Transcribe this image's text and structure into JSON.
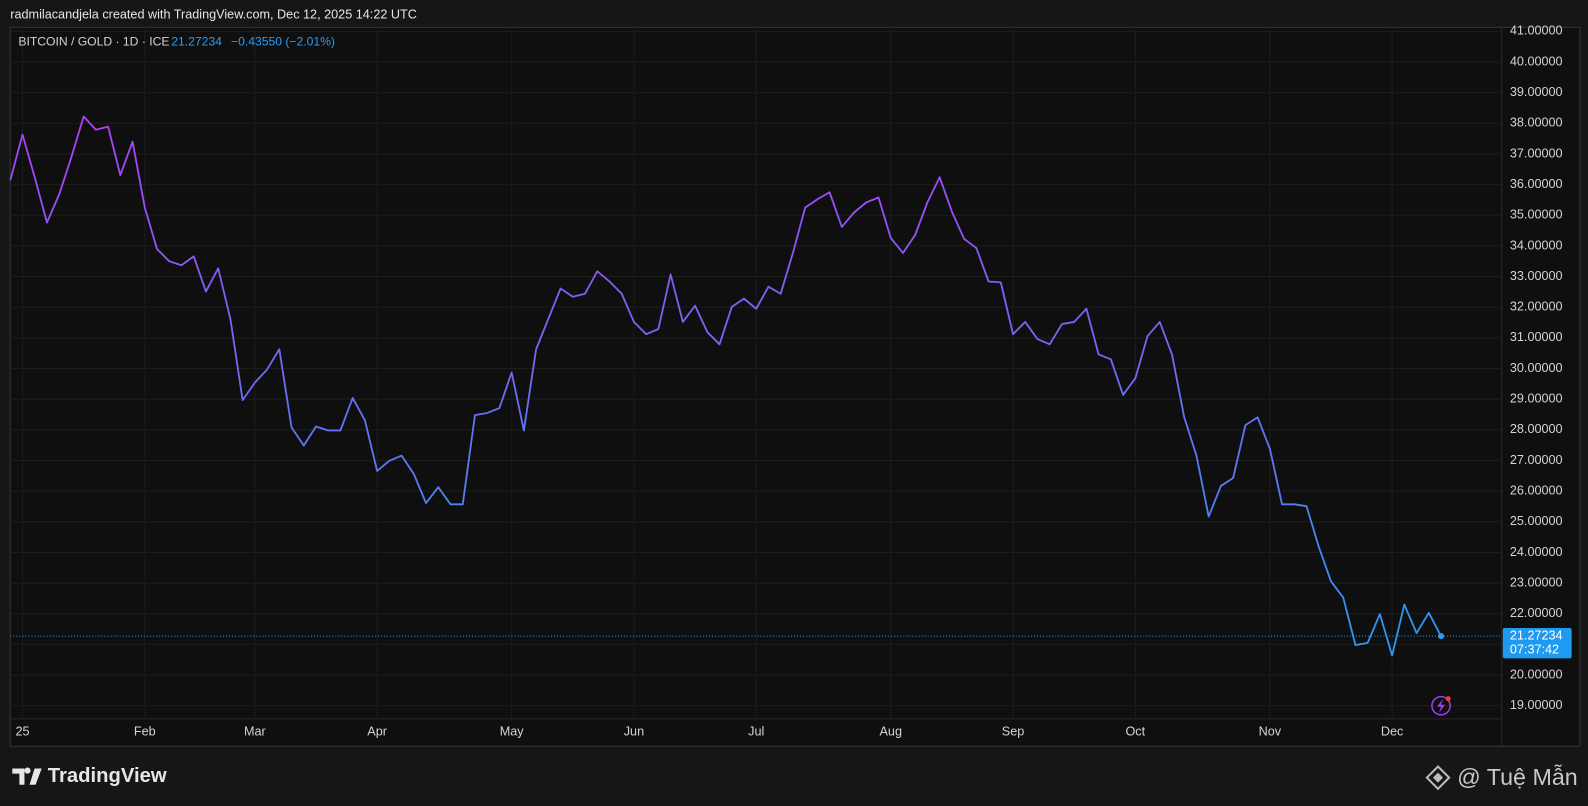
{
  "header": {
    "credit": "radmilacandjela created with TradingView.com, Dec 12, 2025 14:22 UTC"
  },
  "chart_data": {
    "type": "line",
    "title": "BITCOIN / GOLD · 1D · ICE",
    "change": "−0.43550 (−2.01%)",
    "countdown": "07:37:42",
    "colors": [
      "#b13ef4",
      "#2a98f3"
    ],
    "grid": true,
    "categories": [
      null,
      "25",
      null,
      null,
      null,
      null,
      null,
      null,
      null,
      null,
      null,
      "Feb",
      null,
      null,
      null,
      null,
      null,
      null,
      null,
      null,
      "Mar",
      null,
      null,
      null,
      null,
      null,
      null,
      null,
      null,
      null,
      "Apr",
      null,
      null,
      null,
      null,
      null,
      null,
      null,
      null,
      null,
      null,
      "May",
      null,
      null,
      null,
      null,
      null,
      null,
      null,
      null,
      null,
      "Jun",
      null,
      null,
      null,
      null,
      null,
      null,
      null,
      null,
      null,
      "Jul",
      null,
      null,
      null,
      null,
      null,
      null,
      null,
      null,
      null,
      null,
      "Aug",
      null,
      null,
      null,
      null,
      null,
      null,
      null,
      null,
      null,
      "Sep",
      null,
      null,
      null,
      null,
      null,
      null,
      null,
      null,
      null,
      "Oct",
      null,
      null,
      null,
      null,
      null,
      null,
      null,
      null,
      null,
      null,
      "Nov",
      null,
      null,
      null,
      null,
      null,
      null,
      null,
      null,
      null,
      "Dec",
      null,
      null,
      null,
      null
    ],
    "values": [
      36.14,
      37.63,
      36.24,
      34.76,
      35.68,
      36.9,
      38.22,
      37.79,
      37.89,
      36.31,
      37.4,
      35.25,
      33.9,
      33.5,
      33.37,
      33.66,
      32.51,
      33.27,
      31.62,
      28.97,
      29.54,
      29.97,
      30.63,
      28.08,
      27.49,
      28.11,
      27.98,
      27.98,
      29.04,
      28.31,
      26.66,
      26.99,
      27.16,
      26.56,
      25.61,
      26.13,
      25.57,
      25.57,
      28.48,
      28.55,
      28.71,
      29.87,
      27.98,
      30.63,
      31.62,
      32.61,
      32.34,
      32.44,
      33.17,
      32.84,
      32.44,
      31.52,
      31.12,
      31.29,
      33.07,
      31.52,
      32.05,
      31.19,
      30.79,
      32.01,
      32.28,
      31.95,
      32.67,
      32.44,
      33.77,
      35.25,
      35.52,
      35.75,
      34.62,
      35.09,
      35.42,
      35.58,
      34.26,
      33.77,
      34.36,
      35.42,
      36.24,
      35.12,
      34.23,
      33.93,
      32.84,
      32.81,
      31.12,
      31.52,
      30.96,
      30.79,
      31.45,
      31.52,
      31.95,
      30.46,
      30.3,
      29.14,
      29.68,
      31.06,
      31.52,
      30.46,
      28.41,
      27.16,
      25.17,
      26.17,
      26.43,
      28.15,
      28.41,
      27.39,
      25.57,
      25.57,
      25.51,
      24.19,
      23.06,
      22.53,
      20.98,
      21.05,
      21.99,
      20.64,
      22.3,
      21.37,
      22.03,
      21.27234
    ],
    "ylim": [
      18.57,
      41.13
    ],
    "yticks": [
      {
        "value": 19,
        "label": "19.00000"
      },
      {
        "value": 20,
        "label": "20.00000"
      },
      {
        "value": 21,
        "label": "21.00000"
      },
      {
        "value": 22,
        "label": "22.00000"
      },
      {
        "value": 23,
        "label": "23.00000"
      },
      {
        "value": 24,
        "label": "24.00000"
      },
      {
        "value": 25,
        "label": "25.00000"
      },
      {
        "value": 26,
        "label": "26.00000"
      },
      {
        "value": 27,
        "label": "27.00000"
      },
      {
        "value": 28,
        "label": "28.00000"
      },
      {
        "value": 29,
        "label": "29.00000"
      },
      {
        "value": 30,
        "label": "30.00000"
      },
      {
        "value": 31,
        "label": "31.00000"
      },
      {
        "value": 32,
        "label": "32.00000"
      },
      {
        "value": 33,
        "label": "33.00000"
      },
      {
        "value": 34,
        "label": "34.00000"
      },
      {
        "value": 35,
        "label": "35.00000"
      },
      {
        "value": 36,
        "label": "36.00000"
      },
      {
        "value": 37,
        "label": "37.00000"
      },
      {
        "value": 38,
        "label": "38.00000"
      },
      {
        "value": 39,
        "label": "39.00000"
      },
      {
        "value": 40,
        "label": "40.00000"
      },
      {
        "value": 41,
        "label": "41.00000"
      }
    ]
  },
  "footer": {
    "brand": "TradingView",
    "watermark": "@ Tuệ Mẫn"
  }
}
